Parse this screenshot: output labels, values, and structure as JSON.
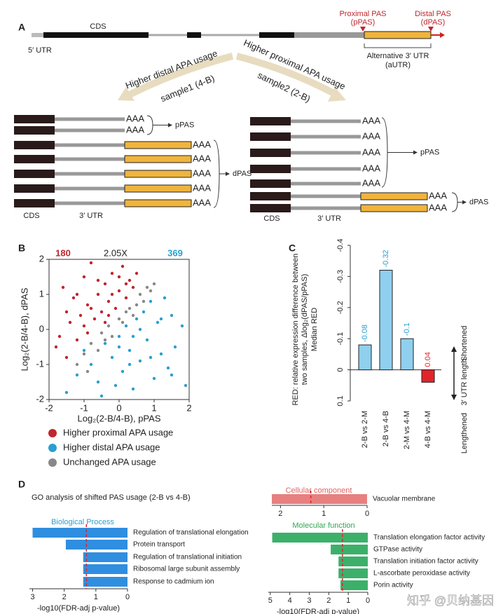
{
  "panel_labels": [
    "A",
    "B",
    "C",
    "D"
  ],
  "diagram": {
    "cds": "CDS",
    "utr5": "5′ UTR",
    "proximal": "Proximal PAS",
    "ppas": "(pPAS)",
    "distal": "Distal PAS",
    "dpas": "(dPAS)",
    "autr": "Alternative 3′ UTR",
    "autr_short": "(aUTR)",
    "left_arrow": "Higher distal APA usage",
    "left_sample": "sample1 (4-B)",
    "right_arrow": "Higher proximal APA usage",
    "right_sample": "sample2 (2-B)",
    "polya": "AAA",
    "ppas_out": "pPAS",
    "dpas_out": "dPAS",
    "utr3": "3′ UTR"
  },
  "go_title": "GO analysis of shifted PAS usage (2-B vs 4-B)",
  "watermark": "知乎 @贝纳基因",
  "chart_data": [
    {
      "type": "scatter",
      "xlabel": "Log₂(2-B/4-B), pPAS",
      "ylabel": "Log₂(2-B/4-B), dPAS",
      "annotations": [
        {
          "text": "180",
          "color": "#c0262d"
        },
        {
          "text": "2.05X",
          "color": "#222"
        },
        {
          "text": "369",
          "color": "#2a9fd0"
        }
      ],
      "xlim": [
        -2,
        2
      ],
      "ylim": [
        -2,
        2
      ],
      "xticks": [
        -2,
        -1,
        0,
        1,
        2
      ],
      "yticks": [
        -2,
        -1,
        0,
        1,
        2
      ],
      "series": [
        {
          "name": "Higher proximal APA usage",
          "color": "#c0262d",
          "x": [
            -1.8,
            -1.6,
            -1.5,
            -1.4,
            -1.3,
            -1.2,
            -1.1,
            -1.0,
            -0.9,
            -0.8,
            -0.7,
            -0.6,
            -0.5,
            -0.4,
            -0.3,
            -0.2,
            -0.1,
            0,
            0.1,
            0.2,
            0.3,
            0.4,
            0.5,
            -1.7,
            -1.5,
            -1.2,
            -1.0,
            -0.8,
            -0.6,
            -0.4,
            -0.2,
            0,
            0.2,
            -0.9,
            -0.3
          ],
          "values": [
            -0.5,
            1.2,
            -0.8,
            0.2,
            0.9,
            -0.3,
            0.4,
            1.5,
            0.7,
            1.9,
            0.3,
            1.0,
            0.5,
            1.3,
            0.8,
            1.6,
            0.6,
            1.1,
            1.8,
            0.9,
            1.4,
            1.2,
            1.6,
            -0.2,
            0.5,
            1.0,
            0.1,
            0.6,
            1.4,
            0.2,
            1.0,
            1.5,
            1.3,
            -0.1,
            0.4
          ]
        },
        {
          "name": "Higher distal APA usage",
          "color": "#2a9fd0",
          "x": [
            -1.5,
            -1.2,
            -1.0,
            -0.8,
            -0.6,
            -0.4,
            -0.2,
            0,
            0.1,
            0.2,
            0.3,
            0.4,
            0.5,
            0.6,
            0.7,
            0.8,
            0.9,
            1.0,
            1.1,
            1.2,
            1.3,
            1.4,
            1.5,
            1.6,
            1.8,
            1.9,
            -0.5,
            -0.1,
            0.3,
            0.6,
            0.9,
            1.2,
            1.5,
            0.0,
            0.4
          ],
          "values": [
            -1.8,
            -1.3,
            -0.6,
            -1.0,
            -1.5,
            -0.4,
            -0.8,
            -0.2,
            -1.2,
            0.1,
            -0.6,
            -1.7,
            0.3,
            -0.9,
            0.5,
            -0.3,
            0.8,
            -1.4,
            0.2,
            -0.7,
            0.9,
            -1.1,
            0.4,
            -0.5,
            0.1,
            -1.6,
            -1.9,
            -1.6,
            -1.0,
            0.0,
            -0.8,
            0.3,
            -1.3,
            -0.5,
            -0.2
          ]
        },
        {
          "name": "Unchanged APA usage",
          "color": "#888888",
          "x": [
            -1.2,
            -1.0,
            -0.8,
            -0.6,
            -0.5,
            -0.3,
            -0.2,
            0,
            0.1,
            0.2,
            0.3,
            0.5,
            0.6,
            0.7,
            0.8,
            0.9,
            1.0,
            -0.9,
            -0.4,
            0.4
          ],
          "values": [
            -1.0,
            -0.7,
            -0.4,
            -0.6,
            -0.1,
            0.1,
            -0.2,
            0.3,
            0.2,
            0.5,
            0.6,
            0.7,
            1.0,
            0.8,
            1.2,
            1.1,
            1.3,
            -1.2,
            -0.3,
            0.4
          ]
        }
      ]
    },
    {
      "type": "bar",
      "ylabel_lines": [
        "RED: relative expression difference between",
        "two samples, Δlog₂(dPAS/pPAS)"
      ],
      "ylabel2": "Median RED",
      "side_labels": [
        "Shortened",
        "3′ UTR length",
        "Lengthened"
      ],
      "categories": [
        "2-B vs 2-M",
        "2-B vs 4-B",
        "2-M vs 4-M",
        "4-B vs 4-M"
      ],
      "values": [
        -0.08,
        -0.32,
        -0.1,
        0.04
      ],
      "colors": [
        "#8fd0ee",
        "#8fd0ee",
        "#8fd0ee",
        "#e0252b"
      ],
      "label_colors": [
        "#2a9fd0",
        "#2a9fd0",
        "#2a9fd0",
        "#e0252b"
      ],
      "ylim": [
        0.1,
        -0.4
      ],
      "yticks": [
        -0.4,
        -0.3,
        -0.2,
        -0.1,
        0,
        0.1
      ]
    },
    {
      "type": "hbar",
      "title": "Biological Process",
      "title_color": "#2a9fd0",
      "color": "#2f8ee0",
      "xlabel": "-log10(FDR-adj p-value)",
      "categories": [
        "Regulation of translational elongation",
        "Protein transport",
        "Regulation of translational initiation",
        "Ribosomal large subunit assembly",
        "Response to cadmium ion"
      ],
      "values": [
        3.0,
        1.95,
        1.4,
        1.4,
        1.4
      ],
      "threshold": 1.3,
      "xlim": [
        3.1,
        0
      ],
      "xticks": [
        3,
        2,
        1,
        0
      ]
    },
    {
      "type": "hbar",
      "title": "Cellular component",
      "title_color": "#e06060",
      "color": "#e88080",
      "categories": [
        "Vacuolar membrane"
      ],
      "values": [
        2.2
      ],
      "threshold": 1.3,
      "xlim": [
        2.2,
        0
      ],
      "xticks": [
        2,
        1,
        0
      ]
    },
    {
      "type": "hbar",
      "title": "Molecular function",
      "title_color": "#2fa84f",
      "color": "#3cb06a",
      "xlabel": "-log10(FDR-adj p-value)",
      "categories": [
        "Translation elongation factor activity",
        "GTPase activity",
        "Translation initiation factor activity",
        "L-ascorbate peroxidase activity",
        "Porin activity"
      ],
      "values": [
        4.9,
        1.9,
        1.5,
        1.5,
        1.4
      ],
      "threshold": 1.3,
      "xlim": [
        5.1,
        0
      ],
      "xticks": [
        5,
        4,
        3,
        2,
        1,
        0
      ]
    }
  ]
}
